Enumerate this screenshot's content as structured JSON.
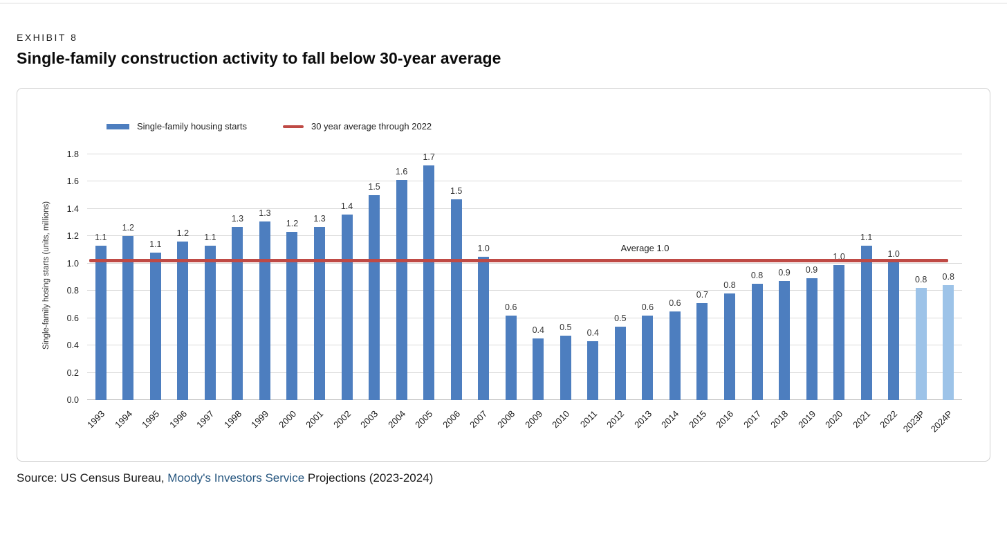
{
  "page": {
    "eyebrow": "EXHIBIT 8",
    "title": "Single-family construction activity to fall below 30-year average",
    "source": {
      "prefix": "Source: US Census Bureau, ",
      "link": "Moody's Investors Service",
      "suffix": " Projections (2023-2024)",
      "link_color": "#26567f"
    }
  },
  "chart_data": {
    "type": "bar",
    "title": "",
    "xlabel": "",
    "ylabel": "Single-family hosing starts (units, millions)",
    "ylim": [
      0,
      1.8
    ],
    "yticks": [
      "0.0",
      "0.2",
      "0.4",
      "0.6",
      "0.8",
      "1.0",
      "1.2",
      "1.4",
      "1.6",
      "1.8"
    ],
    "grid": "horizontal",
    "legend_position": "top-left",
    "legend": [
      {
        "label": "Single-family housing starts",
        "type": "bar",
        "color": "#4d7ebf"
      },
      {
        "label": "30 year average through 2022",
        "type": "line",
        "color": "#bf4a45"
      }
    ],
    "categories": [
      "1993",
      "1994",
      "1995",
      "1996",
      "1997",
      "1998",
      "1999",
      "2000",
      "2001",
      "2002",
      "2003",
      "2004",
      "2005",
      "2006",
      "2007",
      "2008",
      "2009",
      "2010",
      "2011",
      "2012",
      "2013",
      "2014",
      "2015",
      "2016",
      "2017",
      "2018",
      "2019",
      "2020",
      "2021",
      "2022",
      "2023P",
      "2024P"
    ],
    "series": [
      {
        "name": "Single-family housing starts",
        "values": [
          1.13,
          1.2,
          1.08,
          1.16,
          1.13,
          1.27,
          1.31,
          1.23,
          1.27,
          1.36,
          1.5,
          1.61,
          1.72,
          1.47,
          1.05,
          0.62,
          0.45,
          0.47,
          0.43,
          0.54,
          0.62,
          0.65,
          0.71,
          0.78,
          0.85,
          0.87,
          0.89,
          0.99,
          1.13,
          1.01,
          0.82,
          0.84
        ],
        "labels": [
          "1.1",
          "1.2",
          "1.1",
          "1.2",
          "1.1",
          "1.3",
          "1.3",
          "1.2",
          "1.3",
          "1.4",
          "1.5",
          "1.6",
          "1.7",
          "1.5",
          "1.0",
          "0.6",
          "0.4",
          "0.5",
          "0.4",
          "0.5",
          "0.6",
          "0.6",
          "0.7",
          "0.8",
          "0.8",
          "0.9",
          "0.9",
          "1.0",
          "1.1",
          "1.0",
          "0.8",
          "0.8"
        ]
      }
    ],
    "reference_line": {
      "label": "Average 1.0",
      "value": 1.02,
      "color": "#bf4a45",
      "label_x_percent": 61
    },
    "colors": {
      "bar": "#4d7ebf",
      "bar_projected": "#9dc3e8",
      "gridline": "#d9d9d9"
    }
  }
}
